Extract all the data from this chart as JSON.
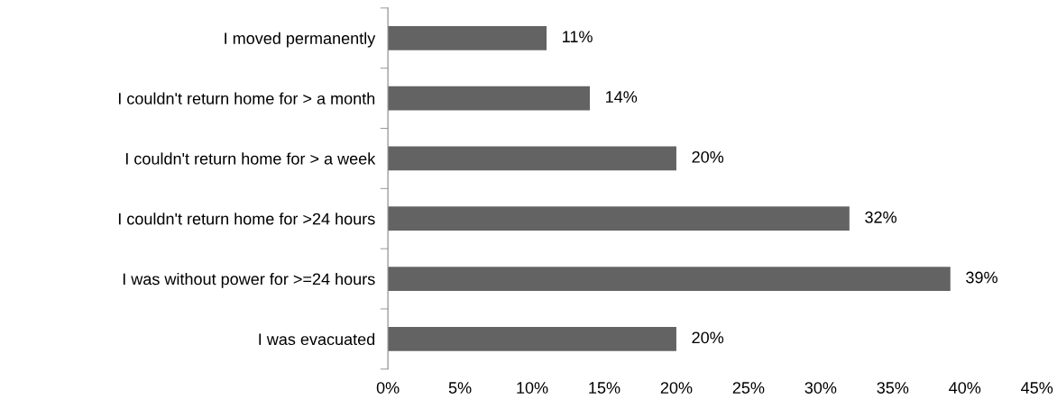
{
  "chart_data": {
    "type": "bar",
    "orientation": "horizontal",
    "categories": [
      "I moved permanently",
      "I couldn't return home for > a month",
      "I couldn't return home for > a week",
      "I couldn't return home for >24 hours",
      "I was without power for >=24 hours",
      "I was evacuated"
    ],
    "values": [
      11,
      14,
      20,
      32,
      39,
      20
    ],
    "value_labels": [
      "11%",
      "14%",
      "20%",
      "32%",
      "39%",
      "20%"
    ],
    "color": "#636363",
    "xlim": [
      0,
      45
    ],
    "xticks": [
      {
        "value": 0,
        "label": "0%"
      },
      {
        "value": 5,
        "label": "5%"
      },
      {
        "value": 10,
        "label": "10%"
      },
      {
        "value": 15,
        "label": "15%"
      },
      {
        "value": 20,
        "label": "20%"
      },
      {
        "value": 25,
        "label": "25%"
      },
      {
        "value": 30,
        "label": "30%"
      },
      {
        "value": 35,
        "label": "35%"
      },
      {
        "value": 40,
        "label": "40%"
      },
      {
        "value": 45,
        "label": "45%"
      }
    ],
    "grid": false,
    "legend": false
  }
}
